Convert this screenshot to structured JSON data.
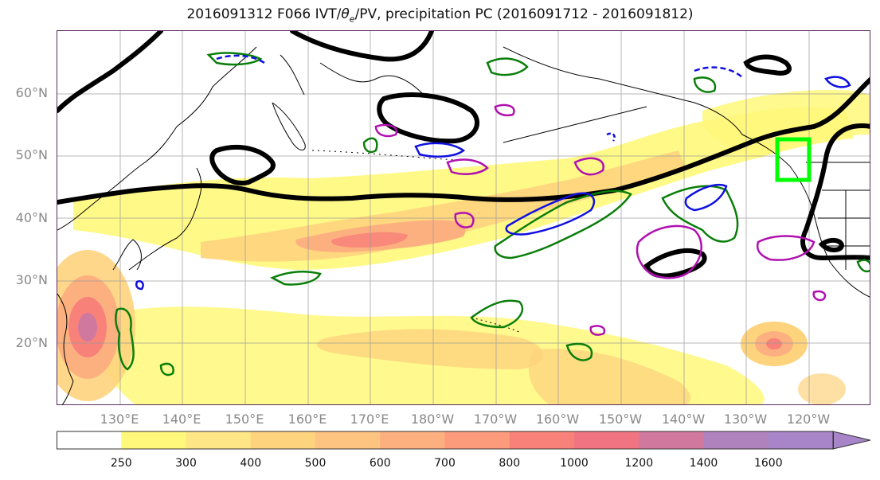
{
  "title_prefix": "2016091312 F066 IVT/",
  "title_theta": "θ",
  "title_theta_sub": "e",
  "title_suffix": "/PV, precipitation PC (2016091712 - 2016091812)",
  "lat_labels": [
    "60°N",
    "50°N",
    "40°N",
    "30°N",
    "20°N"
  ],
  "lon_labels": [
    "130°E",
    "140°E",
    "150°E",
    "160°E",
    "170°E",
    "180°W",
    "170°W",
    "160°W",
    "150°W",
    "140°W",
    "130°W",
    "120°W"
  ],
  "colorbar": {
    "ticks": [
      "250",
      "300",
      "400",
      "500",
      "600",
      "700",
      "800",
      "1000",
      "1200",
      "1400",
      "1600"
    ],
    "colors": [
      "#ffffff",
      "#fff87a",
      "#fee585",
      "#fed37d",
      "#fdc380",
      "#fdb07f",
      "#fc9a7c",
      "#f8827a",
      "#f07482",
      "#d1789f",
      "#b082bd",
      "#a785c8"
    ]
  },
  "colors": {
    "ivt_low": "#fff87a",
    "ivt_mid": "#fdc380",
    "ivt_high": "#f8827a",
    "ivt_peak": "#c878a8",
    "pv_contour": "#000000",
    "precip_green": "#0a7e0a",
    "precip_blue": "#1010e0",
    "precip_magenta": "#b010b0",
    "highlight_box": "#00ff00"
  }
}
